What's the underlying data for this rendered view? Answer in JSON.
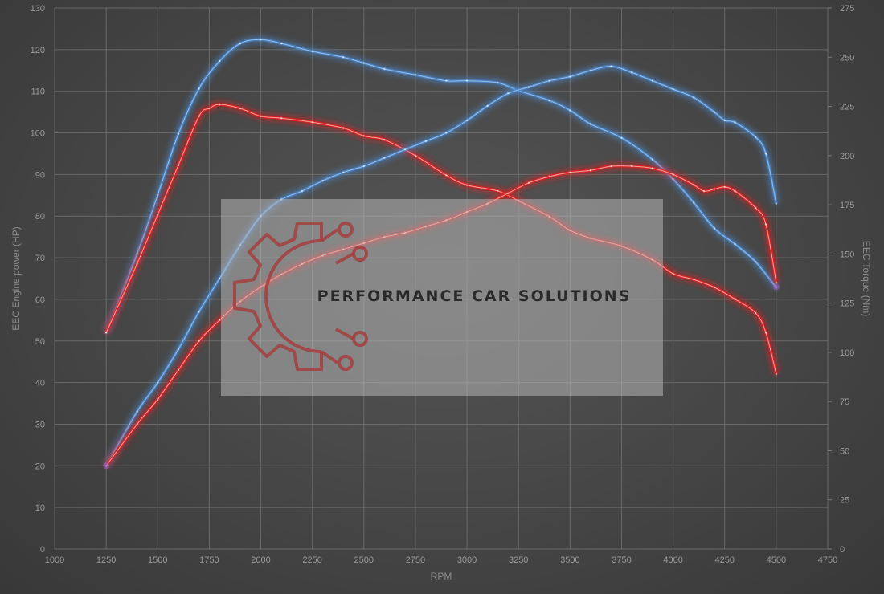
{
  "chart_data": {
    "type": "line",
    "xlabel": "RPM",
    "ylabel_left": "EEC Engine power (HP)",
    "ylabel_right": "EEC Torque (Nm)",
    "xlim": [
      1000,
      4750
    ],
    "ylim_left": [
      0,
      130
    ],
    "ylim_right": [
      0,
      275
    ],
    "x_ticks": [
      1000,
      1250,
      1500,
      1750,
      2000,
      2250,
      2500,
      2750,
      3000,
      3250,
      3500,
      3750,
      4000,
      4250,
      4500,
      4750
    ],
    "y_left_ticks": [
      0,
      10,
      20,
      30,
      40,
      50,
      60,
      70,
      80,
      90,
      100,
      110,
      120,
      130
    ],
    "y_right_ticks": [
      0,
      25,
      50,
      75,
      100,
      125,
      150,
      175,
      200,
      225,
      250,
      275
    ],
    "grid": true,
    "series": [
      {
        "axis": "right",
        "color": "#4a86c8",
        "x": [
          1250,
          1400,
          1500,
          1600,
          1700,
          1800,
          1900,
          2000,
          2100,
          2250,
          2400,
          2500,
          2600,
          2750,
          2900,
          3000,
          3150,
          3250,
          3400,
          3500,
          3600,
          3750,
          3900,
          4000,
          4100,
          4200,
          4300,
          4400,
          4500
        ],
        "values": [
          110,
          150,
          180,
          211,
          234,
          248,
          257,
          259,
          257,
          253,
          250,
          247,
          244,
          241,
          238,
          238,
          237,
          233,
          228,
          223,
          216,
          209,
          198,
          188,
          176,
          163,
          155,
          146,
          133
        ]
      },
      {
        "axis": "right",
        "color": "#e02020",
        "x": [
          1250,
          1400,
          1500,
          1600,
          1700,
          1750,
          1800,
          1900,
          2000,
          2100,
          2250,
          2400,
          2500,
          2600,
          2750,
          2900,
          3000,
          3150,
          3250,
          3400,
          3500,
          3600,
          3750,
          3900,
          4000,
          4100,
          4200,
          4300,
          4400,
          4450,
          4500
        ],
        "values": [
          110,
          145,
          170,
          195,
          220,
          224,
          226,
          224,
          220,
          219,
          217,
          214,
          210,
          208,
          200,
          190,
          185,
          182,
          177,
          169,
          162,
          158,
          154,
          147,
          140,
          137,
          133,
          127,
          120,
          110,
          89
        ]
      },
      {
        "axis": "left",
        "color": "#4a86c8",
        "x": [
          1250,
          1400,
          1500,
          1600,
          1700,
          1800,
          1900,
          2000,
          2100,
          2200,
          2300,
          2400,
          2500,
          2600,
          2700,
          2800,
          2900,
          3000,
          3100,
          3200,
          3300,
          3400,
          3500,
          3600,
          3700,
          3800,
          3900,
          4000,
          4100,
          4200,
          4250,
          4300,
          4400,
          4450,
          4500
        ],
        "values": [
          20,
          33,
          40,
          48,
          57,
          65,
          73,
          80,
          84,
          86,
          88.5,
          90.5,
          92,
          94,
          96,
          98,
          100,
          103,
          106.5,
          109.5,
          111,
          112.5,
          113.5,
          115,
          116,
          114.5,
          112.5,
          110.5,
          108.5,
          105,
          103,
          102.5,
          99,
          95,
          83
        ]
      },
      {
        "axis": "left",
        "color": "#e02020",
        "x": [
          1250,
          1400,
          1500,
          1600,
          1700,
          1800,
          1900,
          2000,
          2100,
          2200,
          2300,
          2400,
          2500,
          2600,
          2700,
          2800,
          2900,
          3000,
          3100,
          3200,
          3300,
          3400,
          3500,
          3600,
          3700,
          3800,
          3900,
          4000,
          4100,
          4150,
          4200,
          4250,
          4300,
          4400,
          4450,
          4500
        ],
        "values": [
          20,
          30,
          36,
          43,
          50,
          55,
          59.5,
          63,
          66,
          68.5,
          70.5,
          72,
          73.5,
          75,
          76,
          77.5,
          79,
          81,
          83,
          85.5,
          88,
          89.5,
          90.5,
          91,
          92,
          92,
          91.5,
          90,
          87.5,
          86,
          86.5,
          87,
          86,
          82,
          78,
          64
        ]
      }
    ],
    "watermark": "PERFORMANCE CAR SOLUTIONS"
  },
  "style": {
    "grid_color": "#7a7a7a",
    "blue": "#4a86c8",
    "red": "#e02020",
    "watermark_panel": "#b5b5b5",
    "logo_color": "#a53a3a"
  }
}
